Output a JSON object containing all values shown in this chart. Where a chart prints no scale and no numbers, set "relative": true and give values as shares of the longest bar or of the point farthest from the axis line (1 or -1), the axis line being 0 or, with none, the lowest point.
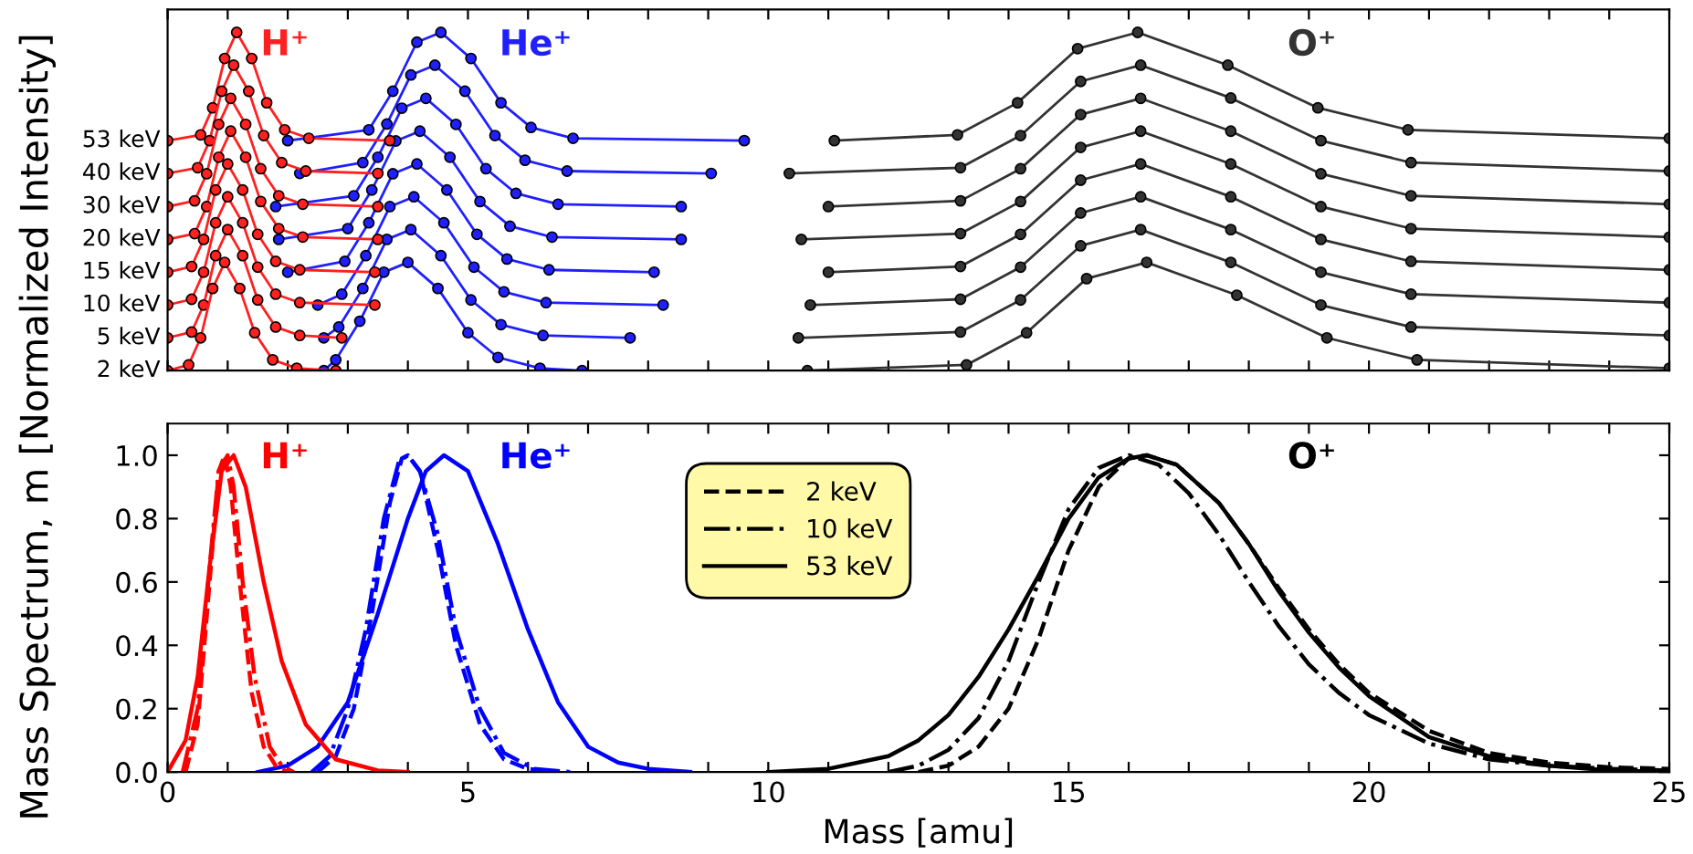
{
  "chart_data": [
    {
      "type": "line",
      "marker": "circle",
      "relative": true,
      "tick_labels": false,
      "xlim": [
        0,
        25
      ],
      "xticks": [
        0,
        1,
        2,
        3,
        4,
        5,
        6,
        7,
        8,
        9,
        10,
        11,
        12,
        13,
        14,
        15,
        16,
        17,
        18,
        19,
        20,
        21,
        22,
        23,
        24,
        25
      ],
      "annotations": [
        "H⁺",
        "He⁺",
        "O⁺",
        "2 keV",
        "5 keV",
        "10 keV",
        "15 keV",
        "20 keV",
        "30 keV",
        "40 keV",
        "53 keV"
      ],
      "series": [
        {
          "color": "#ff2020",
          "x": [
            0,
            0.35,
            0.55,
            0.75,
            0.95,
            1.2,
            1.45,
            1.75,
            2.15,
            2.8
          ],
          "values": [
            0,
            0.017,
            0.097,
            0.243,
            0.32,
            0.243,
            0.112,
            0.032,
            0.007,
            0
          ]
        },
        {
          "color": "#ff2020",
          "x": [
            0,
            0.4,
            0.6,
            0.8,
            1.0,
            1.25,
            1.5,
            1.8,
            2.2,
            2.9
          ],
          "values": [
            0.097,
            0.114,
            0.194,
            0.34,
            0.417,
            0.34,
            0.209,
            0.129,
            0.104,
            0.097
          ]
        },
        {
          "color": "#ff2020",
          "x": [
            0,
            0.4,
            0.6,
            0.8,
            1.0,
            1.25,
            1.5,
            1.8,
            2.2,
            3.45
          ],
          "values": [
            0.194,
            0.211,
            0.291,
            0.437,
            0.514,
            0.437,
            0.306,
            0.226,
            0.201,
            0.194
          ]
        },
        {
          "color": "#ff2020",
          "x": [
            0,
            0.4,
            0.6,
            0.8,
            1.0,
            1.25,
            1.5,
            1.8,
            2.2,
            3.45
          ],
          "values": [
            0.291,
            0.308,
            0.388,
            0.534,
            0.611,
            0.534,
            0.403,
            0.323,
            0.298,
            0.291
          ]
        },
        {
          "color": "#ff2020",
          "x": [
            0,
            0.45,
            0.65,
            0.85,
            1.05,
            1.3,
            1.55,
            1.85,
            2.25,
            3.5
          ],
          "values": [
            0.388,
            0.405,
            0.485,
            0.631,
            0.708,
            0.631,
            0.5,
            0.42,
            0.395,
            0.388
          ]
        },
        {
          "color": "#ff2020",
          "x": [
            0,
            0.45,
            0.65,
            0.85,
            1.05,
            1.3,
            1.55,
            1.85,
            2.25,
            3.5
          ],
          "values": [
            0.485,
            0.502,
            0.582,
            0.728,
            0.805,
            0.728,
            0.597,
            0.517,
            0.492,
            0.485
          ]
        },
        {
          "color": "#ff2020",
          "x": [
            0,
            0.5,
            0.7,
            0.9,
            1.1,
            1.35,
            1.6,
            1.9,
            2.3,
            3.5
          ],
          "values": [
            0.583,
            0.6,
            0.68,
            0.826,
            0.903,
            0.826,
            0.695,
            0.615,
            0.59,
            0.583
          ]
        },
        {
          "color": "#ff2020",
          "x": [
            0,
            0.55,
            0.75,
            0.95,
            1.15,
            1.4,
            1.65,
            1.95,
            2.35,
            3.7
          ],
          "values": [
            0.68,
            0.697,
            0.777,
            0.923,
            1.0,
            0.923,
            0.792,
            0.712,
            0.687,
            0.68
          ]
        },
        {
          "color": "#2020ff",
          "x": [
            2.6,
            2.8,
            3.2,
            3.6,
            4.0,
            4.5,
            5.0,
            5.5,
            6.2,
            6.9
          ],
          "values": [
            0,
            0.032,
            0.146,
            0.291,
            0.32,
            0.243,
            0.112,
            0.039,
            0.007,
            0
          ]
        },
        {
          "color": "#2020ff",
          "x": [
            2.6,
            2.85,
            3.25,
            3.65,
            4.05,
            4.55,
            5.05,
            5.55,
            6.25,
            7.7
          ],
          "values": [
            0.097,
            0.129,
            0.243,
            0.388,
            0.417,
            0.34,
            0.209,
            0.136,
            0.104,
            0.097
          ]
        },
        {
          "color": "#2020ff",
          "x": [
            2.5,
            2.9,
            3.3,
            3.7,
            4.1,
            4.6,
            5.1,
            5.6,
            6.3,
            8.25
          ],
          "values": [
            0.194,
            0.226,
            0.34,
            0.485,
            0.514,
            0.437,
            0.306,
            0.233,
            0.201,
            0.194
          ]
        },
        {
          "color": "#2020ff",
          "x": [
            2.0,
            2.95,
            3.35,
            3.75,
            4.15,
            4.65,
            5.15,
            5.65,
            6.35,
            8.1
          ],
          "values": [
            0.291,
            0.323,
            0.437,
            0.582,
            0.611,
            0.534,
            0.403,
            0.33,
            0.298,
            0.291
          ]
        },
        {
          "color": "#2020ff",
          "x": [
            1.85,
            3.0,
            3.4,
            3.8,
            4.2,
            4.7,
            5.2,
            5.7,
            6.4,
            8.55
          ],
          "values": [
            0.388,
            0.42,
            0.534,
            0.679,
            0.708,
            0.631,
            0.5,
            0.427,
            0.395,
            0.388
          ]
        },
        {
          "color": "#2020ff",
          "x": [
            1.8,
            3.1,
            3.5,
            3.9,
            4.3,
            4.8,
            5.3,
            5.8,
            6.5,
            8.55
          ],
          "values": [
            0.485,
            0.517,
            0.631,
            0.776,
            0.805,
            0.728,
            0.597,
            0.524,
            0.492,
            0.485
          ]
        },
        {
          "color": "#2020ff",
          "x": [
            2.2,
            3.25,
            3.65,
            4.05,
            4.45,
            4.95,
            5.45,
            5.95,
            6.65,
            9.05
          ],
          "values": [
            0.583,
            0.615,
            0.729,
            0.874,
            0.903,
            0.826,
            0.695,
            0.622,
            0.59,
            0.583
          ]
        },
        {
          "color": "#2020ff",
          "x": [
            2.0,
            3.35,
            3.75,
            4.15,
            4.55,
            5.05,
            5.55,
            6.05,
            6.75,
            9.6
          ],
          "values": [
            0.68,
            0.712,
            0.826,
            0.971,
            1.0,
            0.923,
            0.792,
            0.719,
            0.687,
            0.68
          ]
        },
        {
          "color": "#333333",
          "x": [
            10.65,
            13.3,
            14.3,
            15.3,
            16.3,
            17.8,
            19.3,
            20.8,
            25
          ],
          "values": [
            0,
            0.017,
            0.112,
            0.272,
            0.32,
            0.223,
            0.097,
            0.032,
            0.007
          ]
        },
        {
          "color": "#333333",
          "x": [
            10.5,
            13.2,
            14.2,
            15.2,
            16.2,
            17.7,
            19.2,
            20.7,
            25
          ],
          "values": [
            0.097,
            0.114,
            0.209,
            0.369,
            0.417,
            0.32,
            0.194,
            0.129,
            0.104
          ]
        },
        {
          "color": "#333333",
          "x": [
            10.7,
            13.2,
            14.2,
            15.2,
            16.2,
            17.7,
            19.2,
            20.7,
            25
          ],
          "values": [
            0.194,
            0.211,
            0.306,
            0.466,
            0.514,
            0.417,
            0.291,
            0.226,
            0.201
          ]
        },
        {
          "color": "#333333",
          "x": [
            11.0,
            13.2,
            14.2,
            15.2,
            16.2,
            17.7,
            19.2,
            20.7,
            25
          ],
          "values": [
            0.291,
            0.308,
            0.403,
            0.563,
            0.611,
            0.514,
            0.388,
            0.323,
            0.298
          ]
        },
        {
          "color": "#333333",
          "x": [
            10.55,
            13.2,
            14.2,
            15.2,
            16.2,
            17.7,
            19.2,
            20.7,
            25
          ],
          "values": [
            0.388,
            0.405,
            0.5,
            0.66,
            0.708,
            0.611,
            0.485,
            0.42,
            0.395
          ]
        },
        {
          "color": "#333333",
          "x": [
            11.0,
            13.2,
            14.2,
            15.2,
            16.2,
            17.7,
            19.2,
            20.7,
            25
          ],
          "values": [
            0.485,
            0.502,
            0.597,
            0.757,
            0.805,
            0.708,
            0.582,
            0.517,
            0.492
          ]
        },
        {
          "color": "#333333",
          "x": [
            10.35,
            13.2,
            14.2,
            15.2,
            16.2,
            17.7,
            19.2,
            20.7,
            25
          ],
          "values": [
            0.583,
            0.6,
            0.695,
            0.855,
            0.903,
            0.806,
            0.68,
            0.615,
            0.59
          ]
        },
        {
          "color": "#333333",
          "x": [
            11.1,
            13.15,
            14.15,
            15.15,
            16.15,
            17.65,
            19.15,
            20.65,
            25
          ],
          "values": [
            0.68,
            0.697,
            0.792,
            0.952,
            1.0,
            0.903,
            0.777,
            0.712,
            0.687
          ]
        }
      ]
    },
    {
      "type": "line",
      "xlabel": "Mass [amu]",
      "ylabel": "Mass Spectrum, m [Normalized Intensity]",
      "legend": "top",
      "xlim": [
        0,
        25
      ],
      "ylim": [
        0,
        1.1
      ],
      "xticks": [
        0,
        {
          "value": 1,
          "label": null
        },
        {
          "value": 2,
          "label": null
        },
        {
          "value": 3,
          "label": null
        },
        {
          "value": 4,
          "label": null
        },
        5,
        {
          "value": 6,
          "label": null
        },
        {
          "value": 7,
          "label": null
        },
        {
          "value": 8,
          "label": null
        },
        {
          "value": 9,
          "label": null
        },
        10,
        {
          "value": 11,
          "label": null
        },
        {
          "value": 12,
          "label": null
        },
        {
          "value": 13,
          "label": null
        },
        {
          "value": 14,
          "label": null
        },
        15,
        {
          "value": 16,
          "label": null
        },
        {
          "value": 17,
          "label": null
        },
        {
          "value": 18,
          "label": null
        },
        {
          "value": 19,
          "label": null
        },
        20,
        {
          "value": 21,
          "label": null
        },
        {
          "value": 22,
          "label": null
        },
        {
          "value": 23,
          "label": null
        },
        {
          "value": 24,
          "label": null
        },
        25
      ],
      "yticks": [
        {
          "value": 0,
          "label": "0.0"
        },
        0.2,
        0.4,
        0.6,
        0.8,
        {
          "value": 1,
          "label": "1.0"
        }
      ],
      "annotations": [
        "H⁺",
        "He⁺",
        "O⁺"
      ],
      "series": [
        {
          "color": "#ff0000",
          "line_style": "dashed",
          "x": [
            0.3,
            0.5,
            0.7,
            0.85,
            0.95,
            1.05,
            1.2,
            1.4,
            1.6,
            1.8,
            2.0
          ],
          "values": [
            0,
            0.15,
            0.6,
            0.95,
            1.0,
            0.9,
            0.6,
            0.25,
            0.08,
            0.02,
            0
          ]
        },
        {
          "color": "#ff0000",
          "line_style": "dashdot",
          "x": [
            0.25,
            0.5,
            0.7,
            0.85,
            1.0,
            1.1,
            1.25,
            1.45,
            1.7,
            1.9,
            2.1
          ],
          "values": [
            0,
            0.2,
            0.65,
            0.95,
            1.0,
            0.9,
            0.6,
            0.3,
            0.08,
            0.02,
            0
          ]
        },
        {
          "color": "#ff0000",
          "line_style": "solid",
          "x": [
            0,
            0.3,
            0.5,
            0.7,
            0.9,
            1.1,
            1.3,
            1.6,
            1.9,
            2.3,
            2.8,
            3.5,
            4.0
          ],
          "values": [
            0,
            0.1,
            0.3,
            0.65,
            0.95,
            1.0,
            0.9,
            0.6,
            0.35,
            0.15,
            0.04,
            0.005,
            0
          ]
        },
        {
          "color": "#0000ff",
          "line_style": "dashed",
          "x": [
            2.5,
            2.8,
            3.1,
            3.4,
            3.7,
            3.9,
            4.0,
            4.2,
            4.5,
            4.8,
            5.2,
            5.6,
            6.0,
            6.5
          ],
          "values": [
            0,
            0.05,
            0.2,
            0.5,
            0.85,
            0.99,
            1.0,
            0.95,
            0.7,
            0.4,
            0.15,
            0.04,
            0.01,
            0
          ]
        },
        {
          "color": "#0000ff",
          "line_style": "dashdot",
          "x": [
            2.4,
            2.7,
            3.0,
            3.3,
            3.6,
            3.85,
            4.0,
            4.2,
            4.5,
            4.8,
            5.2,
            5.6,
            6.1,
            6.7
          ],
          "values": [
            0,
            0.05,
            0.2,
            0.45,
            0.8,
            0.98,
            1.0,
            0.95,
            0.75,
            0.45,
            0.2,
            0.06,
            0.01,
            0
          ]
        },
        {
          "color": "#0000ff",
          "line_style": "solid",
          "x": [
            1.5,
            2.0,
            2.5,
            3.0,
            3.5,
            4.0,
            4.3,
            4.6,
            5.0,
            5.5,
            6.0,
            6.5,
            7.0,
            7.5,
            8.0,
            8.7
          ],
          "values": [
            0,
            0.02,
            0.08,
            0.22,
            0.5,
            0.8,
            0.95,
            1.0,
            0.95,
            0.72,
            0.45,
            0.22,
            0.08,
            0.03,
            0.01,
            0
          ]
        },
        {
          "name": "2 keV",
          "color": "#000000",
          "line_style": "dashed",
          "x": [
            12.5,
            13.0,
            13.5,
            14.0,
            14.5,
            15.0,
            15.5,
            16.0,
            16.3,
            16.8,
            17.5,
            18.0,
            18.5,
            19.0,
            19.5,
            20.0,
            21.0,
            22.0,
            23.0,
            24.0,
            25.0
          ],
          "values": [
            0,
            0.02,
            0.08,
            0.2,
            0.42,
            0.7,
            0.9,
            0.99,
            1.0,
            0.97,
            0.85,
            0.72,
            0.58,
            0.45,
            0.34,
            0.25,
            0.13,
            0.06,
            0.03,
            0.015,
            0.01
          ]
        },
        {
          "name": "10 keV",
          "color": "#000000",
          "line_style": "dashdot",
          "x": [
            12.0,
            12.5,
            13.0,
            13.5,
            14.0,
            14.5,
            15.0,
            15.5,
            16.0,
            16.5,
            17.0,
            17.5,
            18.0,
            18.5,
            19.0,
            19.5,
            20.0,
            21.0,
            22.0,
            23.0,
            24.0,
            25.0
          ],
          "values": [
            0,
            0.02,
            0.07,
            0.17,
            0.35,
            0.6,
            0.83,
            0.96,
            1.0,
            0.97,
            0.88,
            0.75,
            0.6,
            0.46,
            0.34,
            0.25,
            0.18,
            0.09,
            0.04,
            0.02,
            0.01,
            0.005
          ]
        },
        {
          "name": "53 keV",
          "color": "#000000",
          "line_style": "solid",
          "x": [
            10.0,
            11.0,
            12.0,
            12.5,
            13.0,
            13.5,
            14.0,
            14.5,
            15.0,
            15.5,
            16.0,
            16.3,
            16.8,
            17.5,
            18.0,
            18.5,
            19.0,
            19.5,
            20.0,
            21.0,
            22.0,
            23.0,
            24.0,
            25.0
          ],
          "values": [
            0,
            0.01,
            0.05,
            0.1,
            0.18,
            0.3,
            0.45,
            0.62,
            0.8,
            0.93,
            0.99,
            1.0,
            0.97,
            0.85,
            0.72,
            0.57,
            0.44,
            0.33,
            0.24,
            0.11,
            0.05,
            0.02,
            0.005,
            0
          ]
        }
      ]
    }
  ]
}
